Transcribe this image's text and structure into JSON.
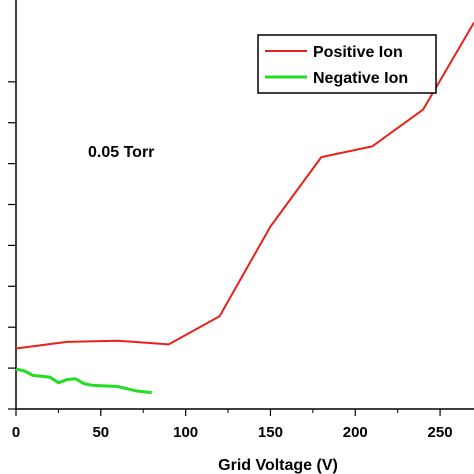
{
  "chart_data": {
    "type": "line",
    "xlabel": "Grid Voltage (V)",
    "ylabel": "",
    "xlim": [
      0,
      270
    ],
    "ylim": [
      0,
      10
    ],
    "xticks": [
      0,
      50,
      100,
      150,
      200,
      250
    ],
    "yticks": [
      0,
      1,
      2,
      3,
      4,
      5,
      6,
      7,
      8
    ],
    "annotation": "0.05 Torr",
    "legend_position": "top-right",
    "grid": false,
    "series": [
      {
        "name": "Positive Ion",
        "color": "#e8221a",
        "x": [
          0,
          30,
          60,
          90,
          120,
          150,
          180,
          210,
          240,
          270
        ],
        "y": [
          1.48,
          1.64,
          1.67,
          1.58,
          2.27,
          4.46,
          6.16,
          6.42,
          7.32,
          9.45
        ]
      },
      {
        "name": "Negative Ion",
        "color": "#22dd22",
        "x": [
          0,
          5,
          10,
          15,
          20,
          25,
          30,
          35,
          40,
          45,
          50,
          55,
          60,
          65,
          70,
          75,
          80
        ],
        "y": [
          0.98,
          0.93,
          0.82,
          0.8,
          0.78,
          0.64,
          0.72,
          0.74,
          0.62,
          0.58,
          0.57,
          0.56,
          0.55,
          0.5,
          0.45,
          0.42,
          0.4
        ]
      }
    ]
  }
}
